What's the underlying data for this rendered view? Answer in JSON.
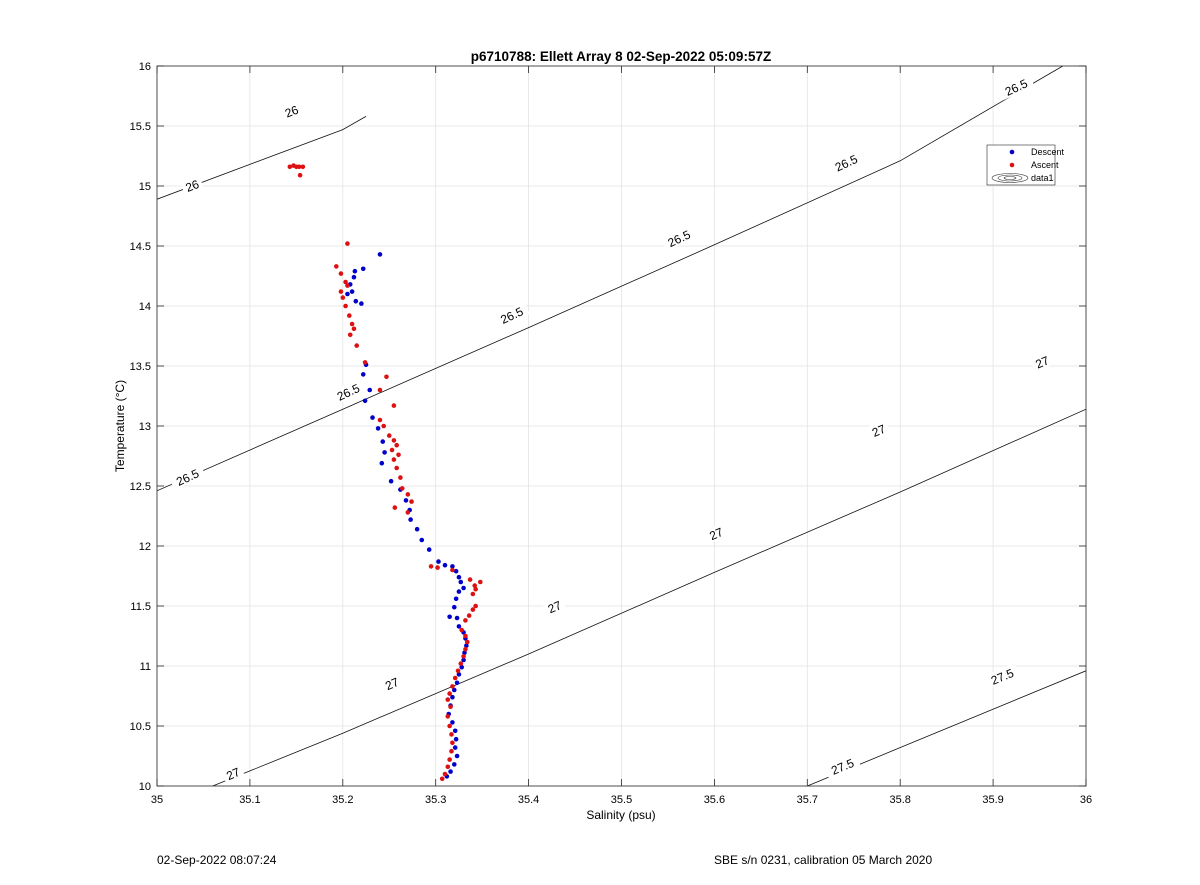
{
  "chart_data": {
    "type": "scatter",
    "title": "p6710788: Ellett Array 8 02-Sep-2022 05:09:57Z",
    "xlabel": "Salinity (psu)",
    "ylabel": "Temperature (°C)",
    "xlim": [
      35,
      36
    ],
    "ylim": [
      10,
      16
    ],
    "xticks": [
      "35",
      "35.1",
      "35.2",
      "35.3",
      "35.4",
      "35.5",
      "35.6",
      "35.7",
      "35.8",
      "35.9",
      "36"
    ],
    "yticks": [
      "10",
      "10.5",
      "11",
      "11.5",
      "12",
      "12.5",
      "13",
      "13.5",
      "14",
      "14.5",
      "15",
      "15.5",
      "16"
    ],
    "grid": true,
    "legend_position": "upper-right",
    "legend": [
      "Descent",
      "Ascent",
      "data1"
    ],
    "series": [
      {
        "name": "Descent",
        "color": "#0000cc",
        "points": [
          [
            35.24,
            14.43
          ],
          [
            35.222,
            14.31
          ],
          [
            35.213,
            14.29
          ],
          [
            35.212,
            14.24
          ],
          [
            35.208,
            14.18
          ],
          [
            35.21,
            14.12
          ],
          [
            35.205,
            14.1
          ],
          [
            35.214,
            14.04
          ],
          [
            35.22,
            14.02
          ],
          [
            35.225,
            13.51
          ],
          [
            35.222,
            13.43
          ],
          [
            35.229,
            13.3
          ],
          [
            35.224,
            13.21
          ],
          [
            35.232,
            13.07
          ],
          [
            35.238,
            12.98
          ],
          [
            35.243,
            12.87
          ],
          [
            35.245,
            12.78
          ],
          [
            35.242,
            12.69
          ],
          [
            35.252,
            12.54
          ],
          [
            35.262,
            12.47
          ],
          [
            35.268,
            12.38
          ],
          [
            35.272,
            12.3
          ],
          [
            35.273,
            12.22
          ],
          [
            35.28,
            12.14
          ],
          [
            35.285,
            12.05
          ],
          [
            35.293,
            11.97
          ],
          [
            35.303,
            11.87
          ],
          [
            35.31,
            11.84
          ],
          [
            35.318,
            11.83
          ],
          [
            35.322,
            11.79
          ],
          [
            35.325,
            11.74
          ],
          [
            35.327,
            11.7
          ],
          [
            35.33,
            11.65
          ],
          [
            35.325,
            11.62
          ],
          [
            35.322,
            11.56
          ],
          [
            35.32,
            11.49
          ],
          [
            35.315,
            11.41
          ],
          [
            35.323,
            11.4
          ],
          [
            35.325,
            11.33
          ],
          [
            35.33,
            11.28
          ],
          [
            35.332,
            11.23
          ],
          [
            35.333,
            11.17
          ],
          [
            35.331,
            11.11
          ],
          [
            35.33,
            11.05
          ],
          [
            35.328,
            10.99
          ],
          [
            35.325,
            10.93
          ],
          [
            35.323,
            10.86
          ],
          [
            35.32,
            10.8
          ],
          [
            35.318,
            10.74
          ],
          [
            35.316,
            10.67
          ],
          [
            35.314,
            10.6
          ],
          [
            35.318,
            10.53
          ],
          [
            35.321,
            10.46
          ],
          [
            35.322,
            10.39
          ],
          [
            35.321,
            10.32
          ],
          [
            35.323,
            10.25
          ],
          [
            35.32,
            10.18
          ],
          [
            35.316,
            10.12
          ],
          [
            35.312,
            10.08
          ]
        ]
      },
      {
        "name": "Ascent",
        "color": "#dd1111",
        "points": [
          [
            35.143,
            15.16
          ],
          [
            35.147,
            15.17
          ],
          [
            35.15,
            15.16
          ],
          [
            35.153,
            15.16
          ],
          [
            35.157,
            15.16
          ],
          [
            35.154,
            15.09
          ],
          [
            35.205,
            14.52
          ],
          [
            35.193,
            14.33
          ],
          [
            35.198,
            14.27
          ],
          [
            35.203,
            14.2
          ],
          [
            35.205,
            14.17
          ],
          [
            35.198,
            14.12
          ],
          [
            35.2,
            14.07
          ],
          [
            35.203,
            14.0
          ],
          [
            35.207,
            13.92
          ],
          [
            35.21,
            13.85
          ],
          [
            35.212,
            13.81
          ],
          [
            35.208,
            13.76
          ],
          [
            35.215,
            13.67
          ],
          [
            35.224,
            13.53
          ],
          [
            35.247,
            13.41
          ],
          [
            35.24,
            13.3
          ],
          [
            35.255,
            13.17
          ],
          [
            35.24,
            13.05
          ],
          [
            35.244,
            13.0
          ],
          [
            35.25,
            12.92
          ],
          [
            35.255,
            12.88
          ],
          [
            35.258,
            12.84
          ],
          [
            35.253,
            12.8
          ],
          [
            35.26,
            12.76
          ],
          [
            35.255,
            12.72
          ],
          [
            35.258,
            12.65
          ],
          [
            35.262,
            12.57
          ],
          [
            35.264,
            12.48
          ],
          [
            35.27,
            12.43
          ],
          [
            35.274,
            12.37
          ],
          [
            35.256,
            12.32
          ],
          [
            35.27,
            12.28
          ],
          [
            35.295,
            11.83
          ],
          [
            35.302,
            11.82
          ],
          [
            35.318,
            11.8
          ],
          [
            35.337,
            11.72
          ],
          [
            35.342,
            11.67
          ],
          [
            35.348,
            11.7
          ],
          [
            35.343,
            11.64
          ],
          [
            35.34,
            11.6
          ],
          [
            35.343,
            11.5
          ],
          [
            35.34,
            11.47
          ],
          [
            35.336,
            11.42
          ],
          [
            35.332,
            11.38
          ],
          [
            35.328,
            11.3
          ],
          [
            35.332,
            11.25
          ],
          [
            35.334,
            11.2
          ],
          [
            35.332,
            11.14
          ],
          [
            35.33,
            11.08
          ],
          [
            35.327,
            11.02
          ],
          [
            35.324,
            10.96
          ],
          [
            35.321,
            10.9
          ],
          [
            35.318,
            10.83
          ],
          [
            35.315,
            10.77
          ],
          [
            35.313,
            10.72
          ],
          [
            35.316,
            10.66
          ],
          [
            35.313,
            10.58
          ],
          [
            35.315,
            10.5
          ],
          [
            35.317,
            10.43
          ],
          [
            35.318,
            10.36
          ],
          [
            35.317,
            10.29
          ],
          [
            35.315,
            10.22
          ],
          [
            35.313,
            10.16
          ],
          [
            35.31,
            10.1
          ],
          [
            35.307,
            10.06
          ]
        ]
      }
    ],
    "contours": [
      {
        "label": "26",
        "points": [
          [
            35.0,
            14.89
          ],
          [
            35.2,
            15.47
          ],
          [
            35.225,
            15.58
          ]
        ],
        "labels_at": [
          [
            35.038,
            15.0
          ],
          [
            35.145,
            15.62
          ]
        ]
      },
      {
        "label": "26.5",
        "points": [
          [
            35.0,
            12.46
          ],
          [
            35.2,
            13.14
          ],
          [
            35.4,
            13.82
          ],
          [
            35.6,
            14.51
          ],
          [
            35.8,
            15.21
          ],
          [
            35.975,
            16.0
          ]
        ],
        "labels_at": [
          [
            35.033,
            12.57
          ],
          [
            35.206,
            13.28
          ],
          [
            35.382,
            13.92
          ],
          [
            35.562,
            14.56
          ],
          [
            35.742,
            15.19
          ],
          [
            35.925,
            15.82
          ]
        ]
      },
      {
        "label": "27",
        "points": [
          [
            35.06,
            10.0
          ],
          [
            35.2,
            10.44
          ],
          [
            35.4,
            11.1
          ],
          [
            35.6,
            11.78
          ],
          [
            35.8,
            12.45
          ],
          [
            36.0,
            13.14
          ]
        ],
        "labels_at": [
          [
            35.082,
            10.1
          ],
          [
            35.253,
            10.85
          ],
          [
            35.428,
            11.49
          ],
          [
            35.602,
            12.1
          ],
          [
            35.777,
            12.96
          ],
          [
            35.953,
            13.53
          ]
        ]
      },
      {
        "label": "27.5",
        "points": [
          [
            35.7,
            10.0
          ],
          [
            35.85,
            10.48
          ],
          [
            36.0,
            10.96
          ]
        ],
        "labels_at": [
          [
            35.738,
            10.16
          ],
          [
            35.91,
            10.91
          ]
        ]
      }
    ]
  },
  "footer": {
    "left": "02-Sep-2022 08:07:24",
    "right": "SBE s/n 0231, calibration 05 March 2020"
  }
}
